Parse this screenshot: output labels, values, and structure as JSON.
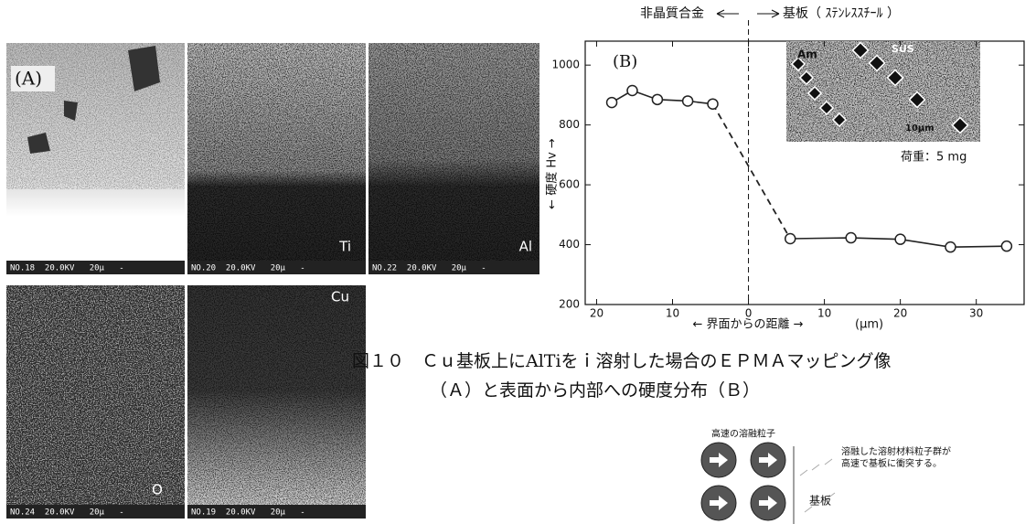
{
  "panels": [
    {
      "label": "(A)",
      "footer": "NO.18  20.0KV   20μ   -"
    },
    {
      "label": "Ti",
      "footer": "NO.20  20.0KV   20μ   -"
    },
    {
      "label": "Al",
      "footer": "NO.22  20.0KV   20μ   -"
    },
    {
      "label": "O",
      "footer": "NO.24  20.0KV   20μ   -"
    },
    {
      "label": "Cu",
      "footer": "NO.19  20.0KV   20μ   -"
    }
  ],
  "chart_data": {
    "type": "line",
    "label": "(B)",
    "left_region": "非晶質合金",
    "right_region": "基板（ ｽﾃﾝﾚｽｽﾁｰﾙ ）",
    "ylabel": "← 硬度 Hv →",
    "xlabel": "← 界面からの距離 →",
    "xunit": "(μm)",
    "inset_labels": [
      "Am",
      "SUS",
      "10μm"
    ],
    "load": "荷重：5 mg",
    "color": "#222",
    "series": [
      {
        "x": [
          -18,
          -15.3,
          -12,
          -8,
          -4.7
        ],
        "values": [
          875,
          915,
          885,
          880,
          870
        ]
      },
      {
        "x": [
          5.5,
          13.5,
          20,
          26.6,
          34
        ],
        "values": [
          420,
          423,
          418,
          392,
          395
        ]
      }
    ],
    "xlim": [
      -21.5,
      36.3
    ],
    "ylim": [
      200,
      1080
    ],
    "xticks": [
      {
        "value": -20,
        "label": "20"
      },
      {
        "value": -10,
        "label": "10"
      },
      0,
      10,
      20,
      30
    ],
    "yticks": [
      200,
      400,
      600,
      800,
      1000
    ]
  },
  "caption": {
    "line1": "図１０　Ｃｕ基板上にAlTiをｉ溶射した場合のＥＰＭＡマッピング像",
    "line2": "（Ａ）と表面から内部への硬度分布（Ｂ）"
  },
  "diagram": {
    "title": "高速の溶融粒子",
    "note1": "溶融した溶射材料粒子群が",
    "note2": "高速で基板に衝突する。",
    "substrate": "基板"
  }
}
